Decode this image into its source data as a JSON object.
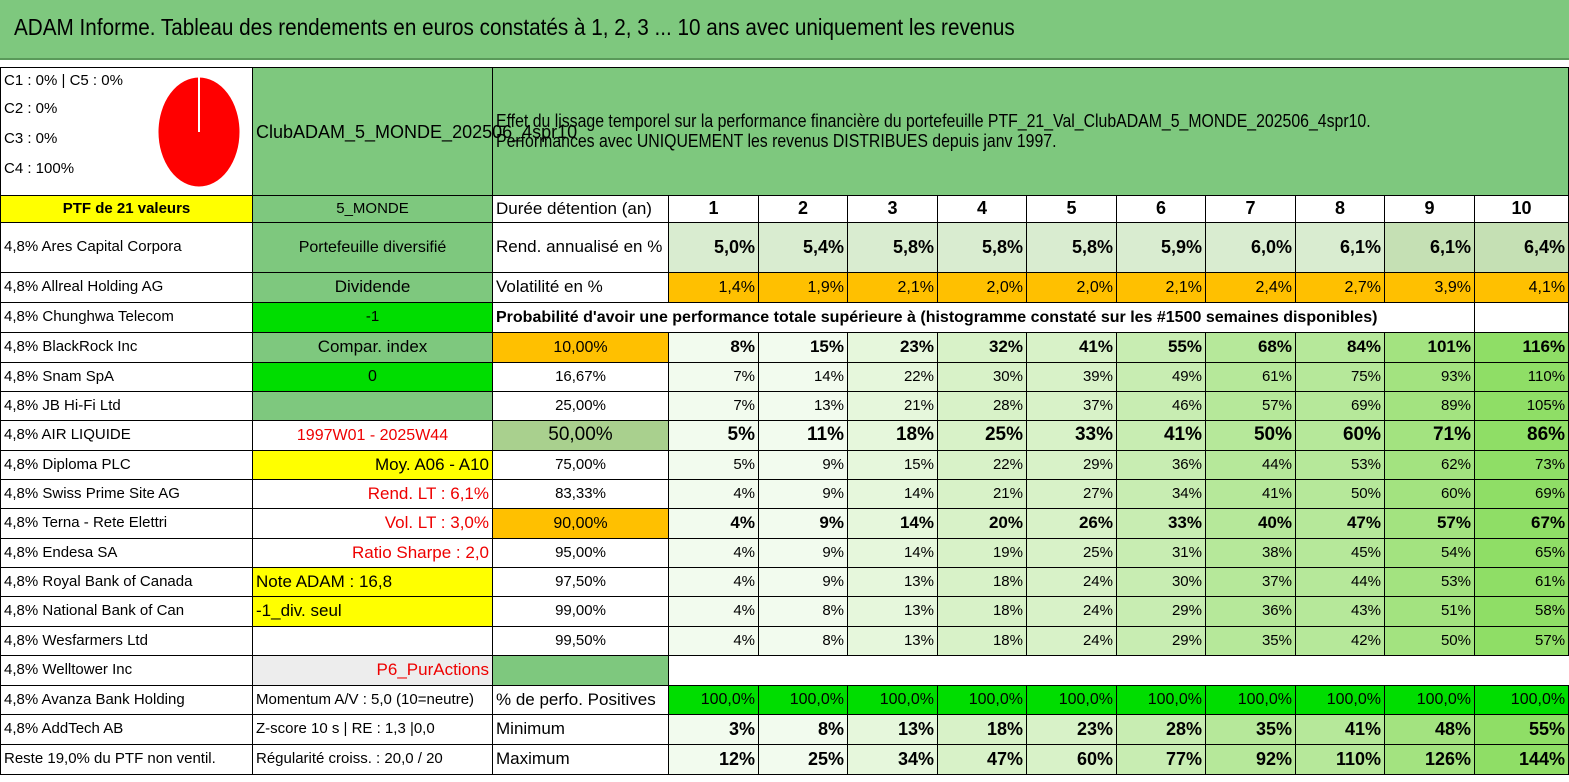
{
  "title": "ADAM Informe. Tableau des rendements en euros constatés à 1, 2, 3 ... 10 ans avec uniquement les revenus",
  "legend": [
    "C1 : 0% | C5 : 0%",
    "C2 : 0%",
    "C3 : 0%",
    "C4 : 100%"
  ],
  "colors": {
    "accent_green": "#7ec87e",
    "pie_red": "#ff0000",
    "highlight_yellow": "#ffff00",
    "orange": "#ffc000",
    "bright_green": "#00dd00"
  },
  "portfolio_name": "ClubADAM_5_MONDE_202506_4spr10",
  "description_line1": "Effet du lissage temporel sur la performance financière du portefeuille PTF_21_Val_ClubADAM_5_MONDE_202506_4spr10.",
  "description_line2": "Performances avec UNIQUEMENT les revenus DISTRIBUES depuis janv 1997.",
  "ptf_label": "PTF de 21 valeurs",
  "zone_label": "5_MONDE",
  "duration_label": "Durée détention (an)",
  "years": [
    "1",
    "2",
    "3",
    "4",
    "5",
    "6",
    "7",
    "8",
    "9",
    "10"
  ],
  "holdings": [
    "4,8% Ares Capital Corpora",
    "4,8% Allreal Holding AG",
    "4,8% Chunghwa Telecom",
    "4,8% BlackRock Inc",
    "4,8% Snam SpA",
    "4,8% JB Hi-Fi Ltd",
    "4,8% AIR LIQUIDE",
    "4,8% Diploma PLC",
    "4,8% Swiss Prime Site AG",
    "4,8% Terna - Rete Elettri",
    "4,8% Endesa SA",
    "4,8% Royal Bank of Canada",
    "4,8% National Bank of Can",
    "4,8% Wesfarmers Ltd",
    "4,8% Welltower Inc",
    "4,8% Avanza Bank Holding",
    "4,8% AddTech AB",
    "Reste 19,0% du PTF non ventil."
  ],
  "info": [
    "Portefeuille diversifié",
    "Dividende",
    "-1",
    "Compar. index",
    "0",
    "",
    "1997W01 - 2025W44",
    "Moy. A06 - A10",
    "Rend. LT : 6,1%",
    "Vol. LT : 3,0%",
    "Ratio Sharpe : 2,0",
    "Note ADAM : 16,8",
    "-1_div. seul",
    "",
    "P6_PurActions",
    "Momentum A/V : 5,0 (10=neutre)",
    "Z-score 10 s | RE : 1,3 |0,0",
    "Régularité croiss. : 20,0 / 20"
  ],
  "rend_label": "Rend. annualisé en %",
  "rend_values": [
    "5,0%",
    "5,4%",
    "5,8%",
    "5,8%",
    "5,8%",
    "5,9%",
    "6,0%",
    "6,1%",
    "6,1%",
    "6,4%"
  ],
  "vol_label": "Volatilité en %",
  "vol_values": [
    "1,4%",
    "1,9%",
    "2,1%",
    "2,0%",
    "2,0%",
    "2,1%",
    "2,4%",
    "2,7%",
    "3,9%",
    "4,1%"
  ],
  "proba_label": "Probabilité d'avoir une performance totale supérieure à (histogramme constaté sur les #1500 semaines disponibles)",
  "proba_rows": [
    {
      "p": "10,00%",
      "v": [
        "8%",
        "15%",
        "23%",
        "32%",
        "41%",
        "55%",
        "68%",
        "84%",
        "101%",
        "116%"
      ]
    },
    {
      "p": "16,67%",
      "v": [
        "7%",
        "14%",
        "22%",
        "30%",
        "39%",
        "49%",
        "61%",
        "75%",
        "93%",
        "110%"
      ]
    },
    {
      "p": "25,00%",
      "v": [
        "7%",
        "13%",
        "21%",
        "28%",
        "37%",
        "46%",
        "57%",
        "69%",
        "89%",
        "105%"
      ]
    },
    {
      "p": "50,00%",
      "v": [
        "5%",
        "11%",
        "18%",
        "25%",
        "33%",
        "41%",
        "50%",
        "60%",
        "71%",
        "86%"
      ]
    },
    {
      "p": "75,00%",
      "v": [
        "5%",
        "9%",
        "15%",
        "22%",
        "29%",
        "36%",
        "44%",
        "53%",
        "62%",
        "73%"
      ]
    },
    {
      "p": "83,33%",
      "v": [
        "4%",
        "9%",
        "14%",
        "21%",
        "27%",
        "34%",
        "41%",
        "50%",
        "60%",
        "69%"
      ]
    },
    {
      "p": "90,00%",
      "v": [
        "4%",
        "9%",
        "14%",
        "20%",
        "26%",
        "33%",
        "40%",
        "47%",
        "57%",
        "67%"
      ]
    },
    {
      "p": "95,00%",
      "v": [
        "4%",
        "9%",
        "14%",
        "19%",
        "25%",
        "31%",
        "38%",
        "45%",
        "54%",
        "65%"
      ]
    },
    {
      "p": "97,50%",
      "v": [
        "4%",
        "9%",
        "13%",
        "18%",
        "24%",
        "30%",
        "37%",
        "44%",
        "53%",
        "61%"
      ]
    },
    {
      "p": "99,00%",
      "v": [
        "4%",
        "8%",
        "13%",
        "18%",
        "24%",
        "29%",
        "36%",
        "43%",
        "51%",
        "58%"
      ]
    },
    {
      "p": "99,50%",
      "v": [
        "4%",
        "8%",
        "13%",
        "18%",
        "24%",
        "29%",
        "35%",
        "42%",
        "50%",
        "57%"
      ]
    }
  ],
  "pos_label": "% de perfo. Positives",
  "pos_values": [
    "100,0%",
    "100,0%",
    "100,0%",
    "100,0%",
    "100,0%",
    "100,0%",
    "100,0%",
    "100,0%",
    "100,0%",
    "100,0%"
  ],
  "min_label": "Minimum",
  "min_values": [
    "3%",
    "8%",
    "13%",
    "18%",
    "23%",
    "28%",
    "35%",
    "41%",
    "48%",
    "55%"
  ],
  "max_label": "Maximum",
  "max_values": [
    "12%",
    "25%",
    "34%",
    "47%",
    "60%",
    "77%",
    "92%",
    "110%",
    "126%",
    "144%"
  ]
}
